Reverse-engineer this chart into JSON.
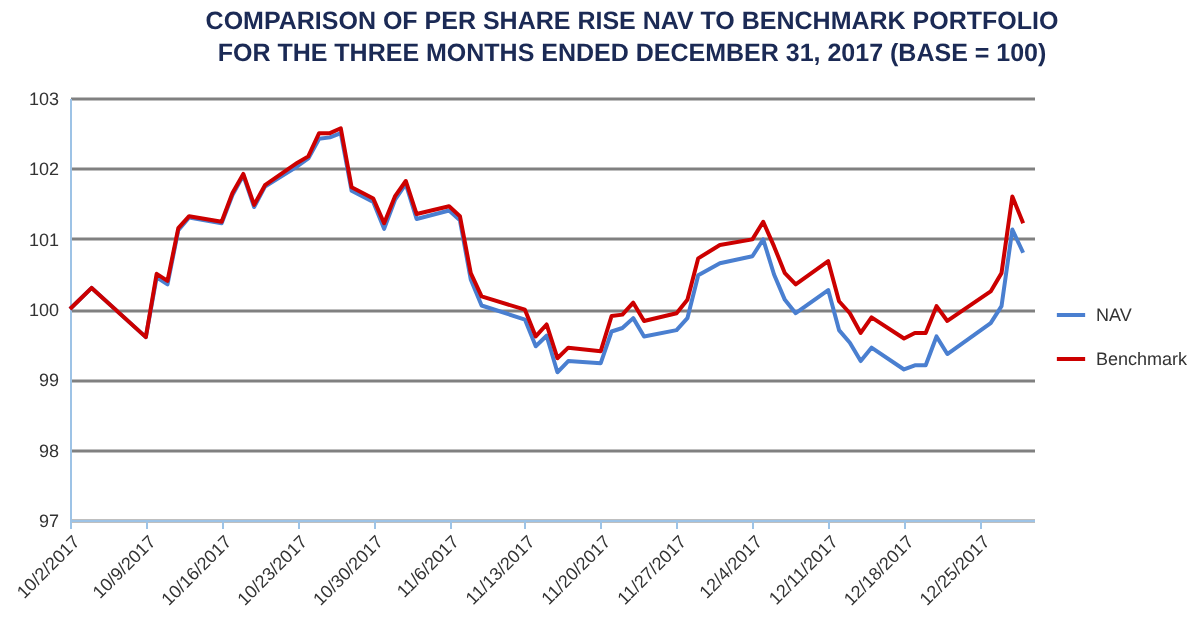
{
  "chart_data": {
    "type": "line",
    "title": "COMPARISON OF PER SHARE RISE NAV TO BENCHMARK PORTFOLIO\nFOR THE THREE MONTHS ENDED DECEMBER 31, 2017 (BASE = 100)",
    "x": [
      "2017-10-02",
      "2017-10-04",
      "2017-10-09",
      "2017-10-10",
      "2017-10-11",
      "2017-10-12",
      "2017-10-13",
      "2017-10-16",
      "2017-10-17",
      "2017-10-18",
      "2017-10-19",
      "2017-10-20",
      "2017-10-23",
      "2017-10-24",
      "2017-10-25",
      "2017-10-26",
      "2017-10-27",
      "2017-10-28",
      "2017-10-30",
      "2017-10-31",
      "2017-11-01",
      "2017-11-02",
      "2017-11-03",
      "2017-11-06",
      "2017-11-07",
      "2017-11-08",
      "2017-11-09",
      "2017-11-13",
      "2017-11-14",
      "2017-11-15",
      "2017-11-16",
      "2017-11-17",
      "2017-11-20",
      "2017-11-21",
      "2017-11-22",
      "2017-11-23",
      "2017-11-24",
      "2017-11-27",
      "2017-11-28",
      "2017-11-29",
      "2017-12-01",
      "2017-12-04",
      "2017-12-05",
      "2017-12-06",
      "2017-12-07",
      "2017-12-08",
      "2017-12-11",
      "2017-12-12",
      "2017-12-13",
      "2017-12-14",
      "2017-12-15",
      "2017-12-18",
      "2017-12-19",
      "2017-12-20",
      "2017-12-21",
      "2017-12-22",
      "2017-12-26",
      "2017-12-27",
      "2017-12-28",
      "2017-12-29"
    ],
    "series": [
      {
        "name": "NAV",
        "color": "#4a7fd0",
        "values": [
          100.0,
          100.3,
          99.6,
          100.45,
          100.35,
          101.12,
          101.3,
          101.22,
          101.62,
          101.9,
          101.45,
          101.74,
          102.03,
          102.14,
          102.42,
          102.44,
          102.5,
          101.68,
          101.52,
          101.14,
          101.55,
          101.78,
          101.28,
          101.4,
          101.26,
          100.42,
          100.05,
          99.85,
          99.47,
          99.62,
          99.1,
          99.26,
          99.23,
          99.68,
          99.73,
          99.87,
          99.61,
          99.7,
          99.87,
          100.48,
          100.65,
          100.75,
          100.99,
          100.49,
          100.13,
          99.94,
          100.27,
          99.7,
          99.52,
          99.26,
          99.45,
          99.14,
          99.2,
          99.2,
          99.61,
          99.36,
          99.8,
          100.04,
          101.13,
          100.8
        ]
      },
      {
        "name": "Benchmark",
        "color": "#cc0000",
        "values": [
          100.0,
          100.3,
          99.6,
          100.5,
          100.4,
          101.15,
          101.32,
          101.24,
          101.65,
          101.92,
          101.48,
          101.76,
          102.08,
          102.17,
          102.5,
          102.5,
          102.57,
          101.73,
          101.57,
          101.22,
          101.6,
          101.82,
          101.35,
          101.46,
          101.32,
          100.51,
          100.18,
          99.99,
          99.61,
          99.78,
          99.3,
          99.45,
          99.4,
          99.9,
          99.92,
          100.09,
          99.83,
          99.94,
          100.13,
          100.72,
          100.91,
          100.99,
          101.24,
          100.89,
          100.51,
          100.35,
          100.68,
          100.11,
          99.94,
          99.66,
          99.88,
          99.58,
          99.66,
          99.66,
          100.04,
          99.83,
          100.25,
          100.51,
          101.6,
          101.22
        ]
      }
    ],
    "xlim": [
      "2017-10-02",
      "2017-12-30"
    ],
    "xticks": [
      {
        "value": "2017-10-02",
        "label": "10/2/2017"
      },
      {
        "value": "2017-10-09",
        "label": "10/9/2017"
      },
      {
        "value": "2017-10-16",
        "label": "10/16/2017"
      },
      {
        "value": "2017-10-23",
        "label": "10/23/2017"
      },
      {
        "value": "2017-10-30",
        "label": "10/30/2017"
      },
      {
        "value": "2017-11-06",
        "label": "11/6/2017"
      },
      {
        "value": "2017-11-13",
        "label": "11/13/2017"
      },
      {
        "value": "2017-11-20",
        "label": "11/20/2017"
      },
      {
        "value": "2017-11-27",
        "label": "11/27/2017"
      },
      {
        "value": "2017-12-04",
        "label": "12/4/2017"
      },
      {
        "value": "2017-12-11",
        "label": "12/11/2017"
      },
      {
        "value": "2017-12-18",
        "label": "12/18/2017"
      },
      {
        "value": "2017-12-25",
        "label": "12/25/2017"
      }
    ],
    "ylim": [
      97,
      103
    ],
    "yticks": [
      97,
      98,
      99,
      100,
      101,
      102,
      103
    ],
    "grid": "y",
    "legend": "right",
    "line_style": "solid",
    "marker": "none"
  }
}
